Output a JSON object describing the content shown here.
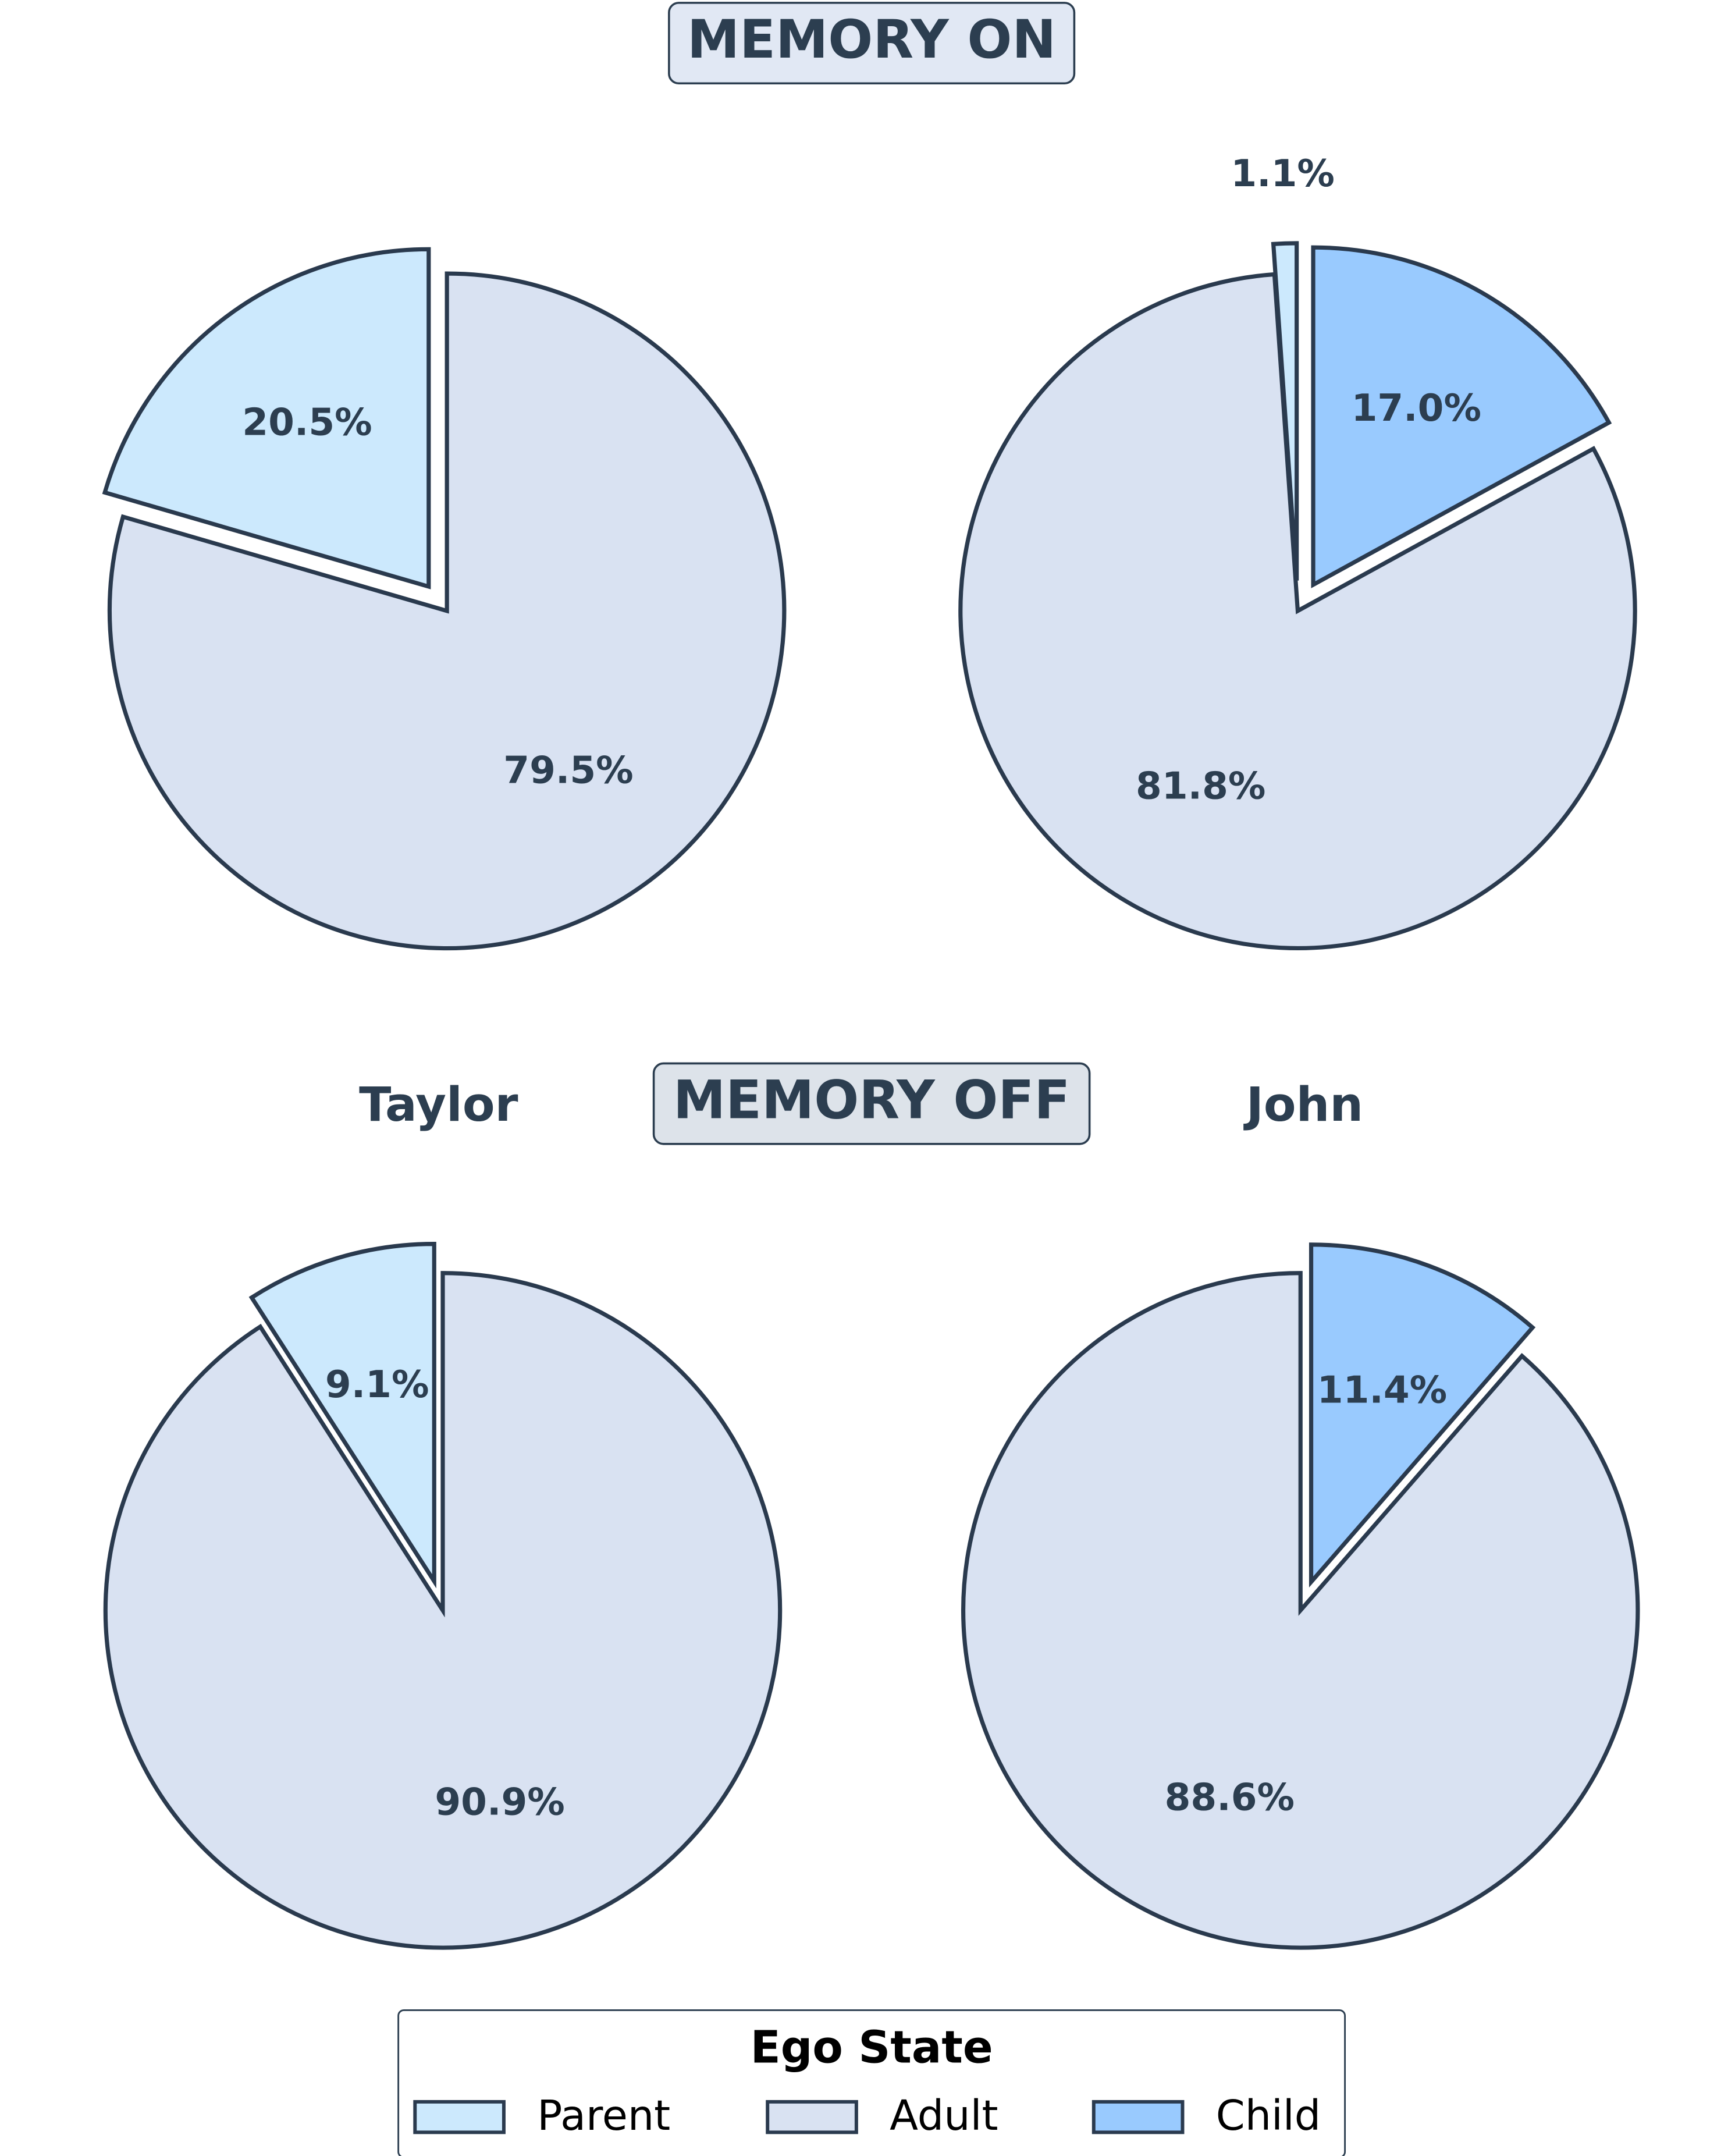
{
  "row_titles": [
    "MEMORY ON",
    "MEMORY OFF"
  ],
  "column_titles": [
    "Taylor",
    "John"
  ],
  "legend": {
    "title": "Ego State",
    "entries": [
      {
        "name": "Parent",
        "color": "#cce9fd"
      },
      {
        "name": "Adult",
        "color": "#d9e2f2"
      },
      {
        "name": "Child",
        "color": "#99cafe"
      }
    ]
  },
  "chart_data": [
    {
      "type": "pie",
      "categories": [
        "Parent",
        "Adult"
      ],
      "values": [
        20.5,
        79.5
      ],
      "value_labels": [
        "20.5%",
        "79.5%"
      ],
      "explode": [
        true,
        false
      ]
    },
    {
      "type": "pie",
      "categories": [
        "Parent",
        "Adult",
        "Child"
      ],
      "values": [
        1.1,
        81.8,
        17.0
      ],
      "value_labels": [
        "1.1%",
        "81.8%",
        "17.0%"
      ],
      "explode": [
        true,
        false,
        true
      ]
    },
    {
      "type": "pie",
      "categories": [
        "Parent",
        "Adult"
      ],
      "values": [
        9.1,
        90.9
      ],
      "value_labels": [
        "9.1%",
        "90.9%"
      ],
      "explode": [
        true,
        false
      ]
    },
    {
      "type": "pie",
      "categories": [
        "Adult",
        "Child"
      ],
      "values": [
        88.6,
        11.4
      ],
      "value_labels": [
        "88.6%",
        "11.4%"
      ],
      "explode": [
        false,
        true
      ]
    }
  ]
}
